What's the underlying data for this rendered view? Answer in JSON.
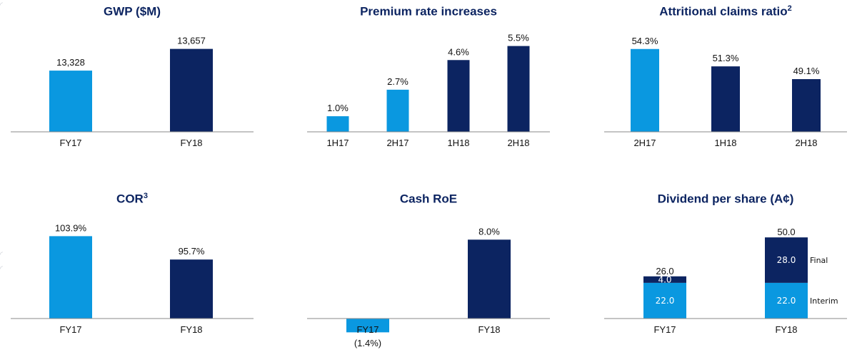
{
  "colors": {
    "light": "#0a98e0",
    "dark": "#0c2461",
    "axis": "#8a8a8a",
    "title": "#0c2461"
  },
  "chart_data": [
    {
      "id": "gwp",
      "type": "bar",
      "title": "GWP ($M)",
      "title_sup": "",
      "categories": [
        "FY17",
        "FY18"
      ],
      "values": [
        13328,
        13657
      ],
      "labels": [
        "13,328",
        "13,657"
      ],
      "colors": [
        "light",
        "dark"
      ],
      "ylim": [
        12400,
        13750
      ]
    },
    {
      "id": "premium",
      "type": "bar",
      "title": "Premium rate increases",
      "title_sup": "",
      "categories": [
        "1H17",
        "2H17",
        "1H18",
        "2H18"
      ],
      "values": [
        1.0,
        2.7,
        4.6,
        5.5
      ],
      "labels": [
        "1.0%",
        "2.7%",
        "4.6%",
        "5.5%"
      ],
      "colors": [
        "light",
        "light",
        "dark",
        "dark"
      ],
      "ylim": [
        0,
        5.8
      ]
    },
    {
      "id": "claims",
      "type": "bar",
      "title": "Attritional claims ratio",
      "title_sup": "2",
      "categories": [
        "2H17",
        "1H18",
        "2H18"
      ],
      "values": [
        54.3,
        51.3,
        49.1
      ],
      "labels": [
        "54.3%",
        "51.3%",
        "49.1%"
      ],
      "colors": [
        "light",
        "dark",
        "dark"
      ],
      "ylim": [
        40,
        55.5
      ]
    },
    {
      "id": "cor",
      "type": "bar",
      "title": "COR",
      "title_sup": "3",
      "categories": [
        "FY17",
        "FY18"
      ],
      "values": [
        103.9,
        95.7
      ],
      "labels": [
        "103.9%",
        "95.7%"
      ],
      "colors": [
        "light",
        "dark"
      ],
      "ylim": [
        75,
        105
      ]
    },
    {
      "id": "roe",
      "type": "bar",
      "title": "Cash RoE",
      "title_sup": "",
      "categories": [
        "FY17",
        "FY18"
      ],
      "values": [
        -1.4,
        8.0
      ],
      "labels": [
        "(1.4%)",
        "8.0%"
      ],
      "colors": [
        "light",
        "dark"
      ],
      "ylim": [
        -2.5,
        8.6
      ]
    },
    {
      "id": "dps",
      "type": "stacked-bar",
      "title": "Dividend per share (A¢)",
      "title_sup": "",
      "categories": [
        "FY17",
        "FY18"
      ],
      "series": [
        {
          "name": "Interim",
          "values": [
            22.0,
            22.0
          ],
          "labels": [
            "22.0",
            "22.0"
          ],
          "color": "light"
        },
        {
          "name": "Final",
          "values": [
            4.0,
            28.0
          ],
          "labels": [
            "4.0",
            "28.0"
          ],
          "color": "dark"
        }
      ],
      "totals": [
        "26.0",
        "50.0"
      ],
      "ylim": [
        0,
        50.5
      ]
    }
  ]
}
